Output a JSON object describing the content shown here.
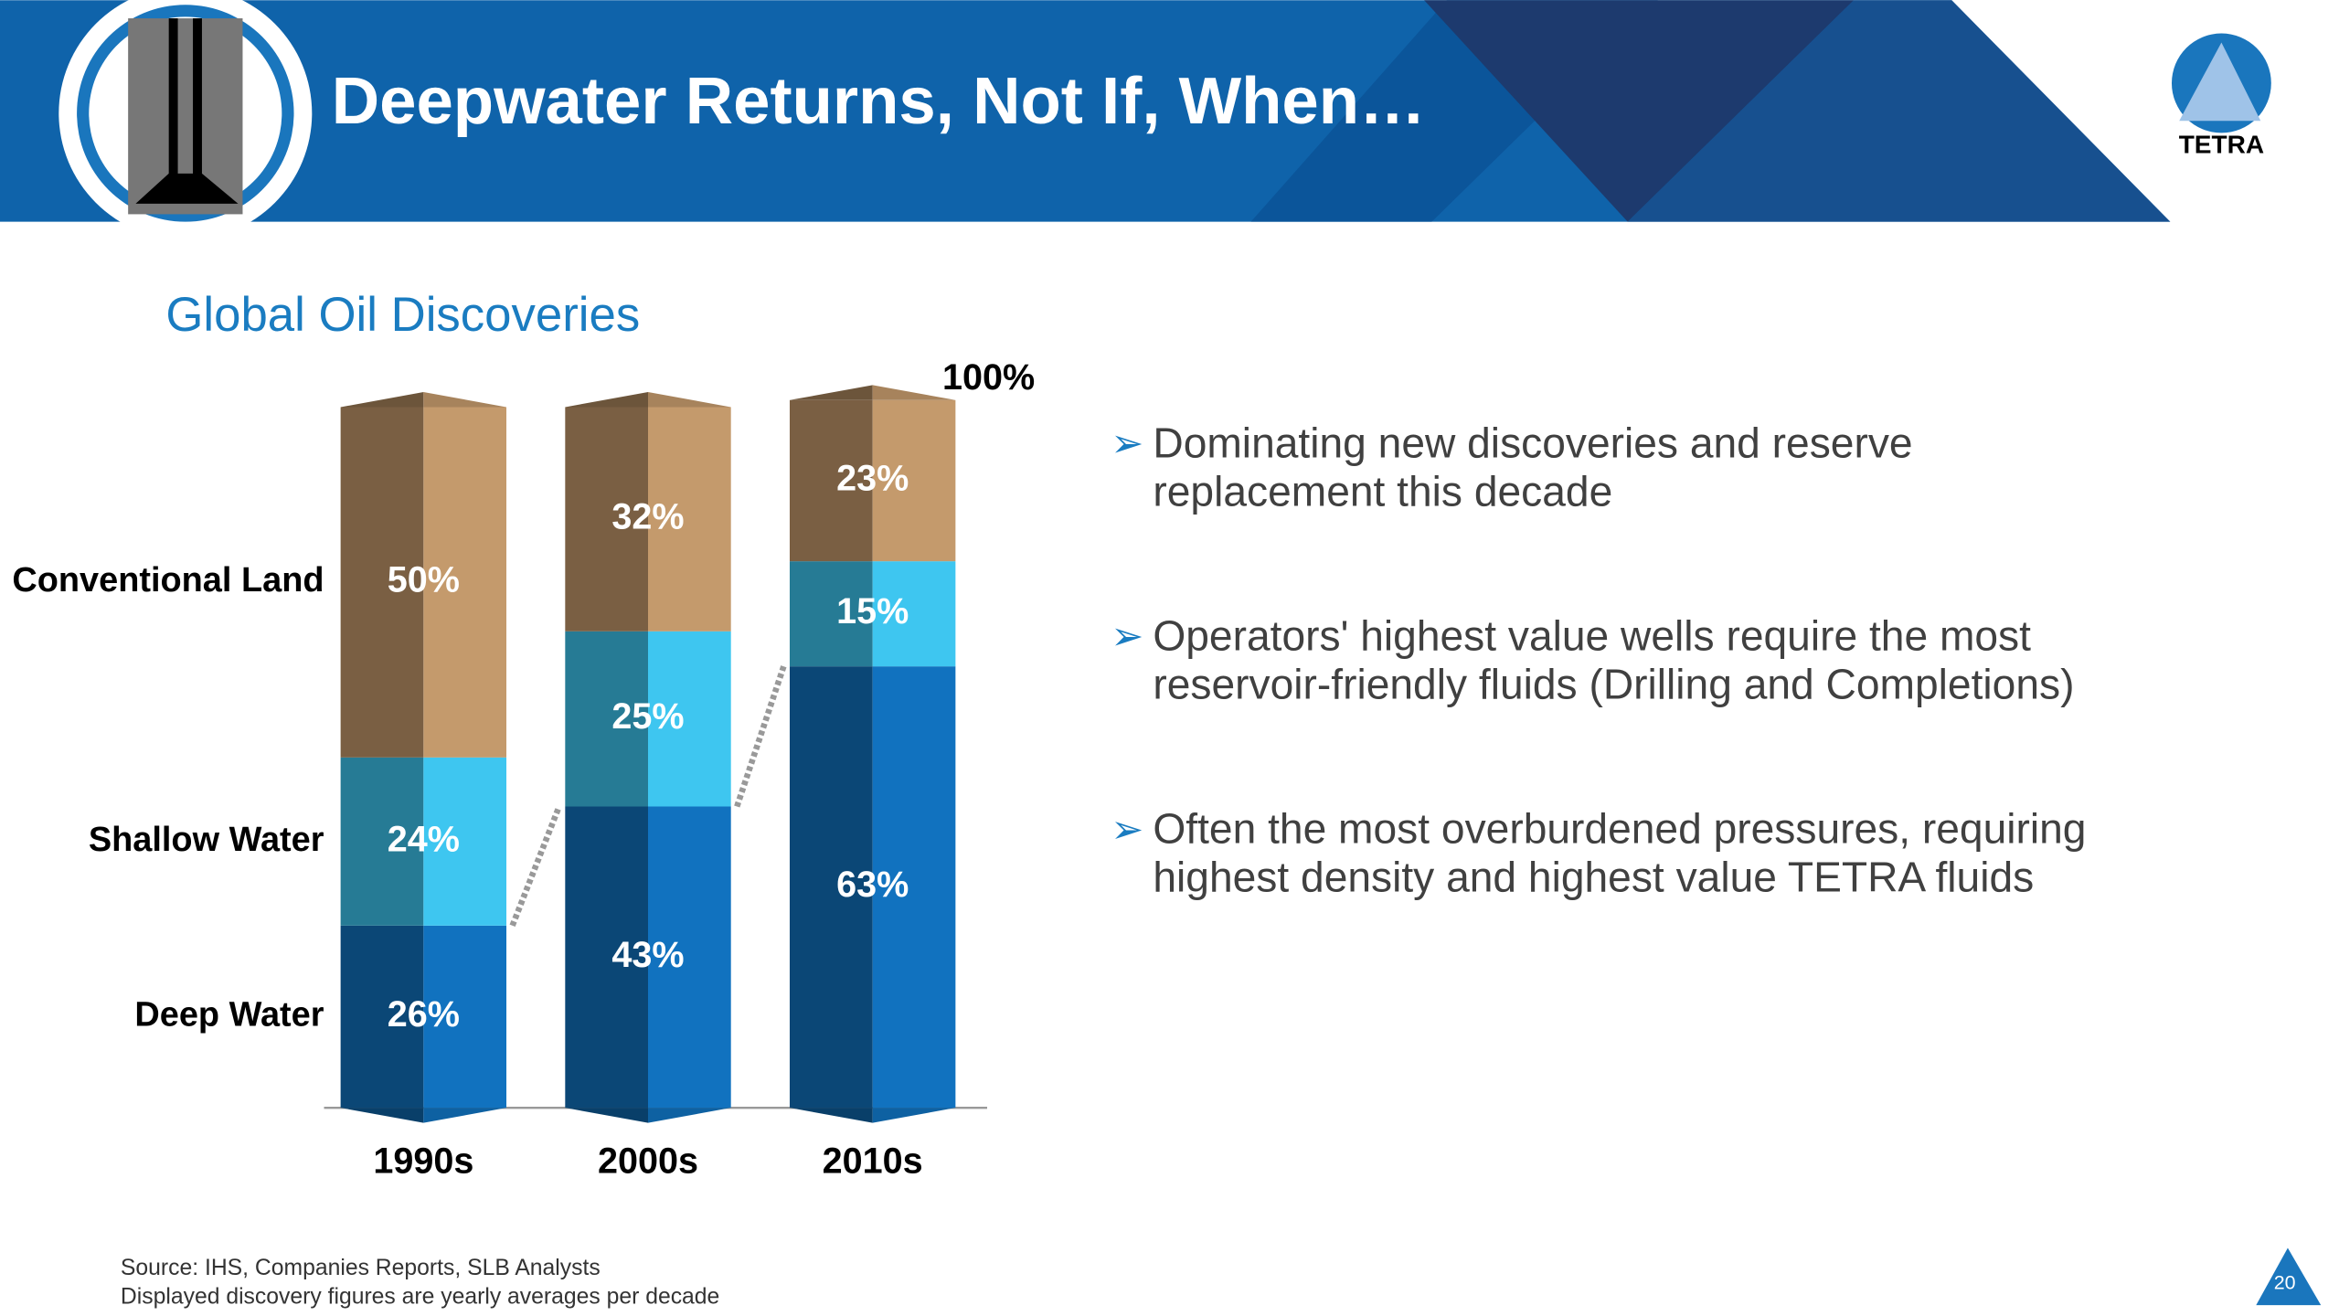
{
  "header": {
    "title": "Deepwater Returns, Not If, When…",
    "logo_text": "TETRA"
  },
  "chart_data": {
    "type": "stacked-bar",
    "title": "Global Oil Discoveries",
    "categories": [
      "1990s",
      "2000s",
      "2010s"
    ],
    "series": [
      {
        "name": "Deep Water",
        "color": "#1172bf",
        "values": [
          26,
          43,
          63
        ],
        "value_labels": [
          "26%",
          "43%",
          "63%"
        ]
      },
      {
        "name": "Shallow Water",
        "color": "#3ec6f0",
        "values": [
          24,
          25,
          15
        ],
        "value_labels": [
          "24%",
          "25%",
          "15%"
        ]
      },
      {
        "name": "Conventional Land",
        "color": "#c49a6c",
        "values": [
          50,
          32,
          23
        ],
        "value_labels": [
          "50%",
          "32%",
          "23%"
        ]
      }
    ],
    "ylim": [
      0,
      100
    ],
    "yticks": [
      {
        "value": 100,
        "label": "100%"
      }
    ]
  },
  "bullets": [
    [
      "Dominating new discoveries and reserve",
      "replacement this decade"
    ],
    [
      "Operators' highest value wells require the most",
      "reservoir-friendly fluids (Drilling and Completions)"
    ],
    [
      "Often the most overburdened pressures, requiring",
      "highest density and highest value TETRA fluids"
    ]
  ],
  "footnotes": [
    "Source: IHS, Companies Reports, SLB Analysts",
    "Displayed discovery figures are yearly averages per decade"
  ],
  "page_number": "20"
}
